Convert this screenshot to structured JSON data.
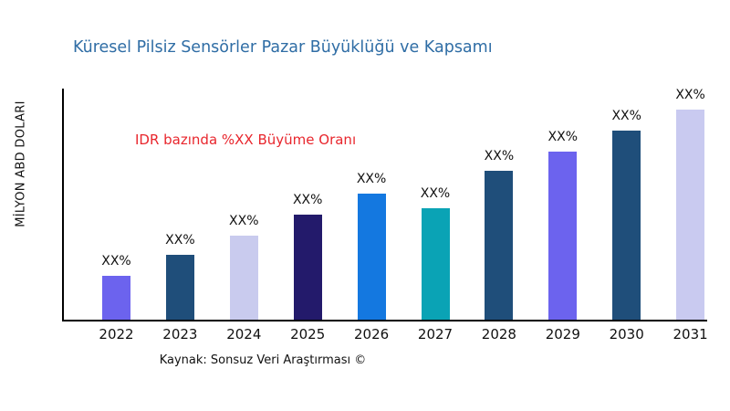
{
  "title": "Küresel Pilsiz Sensörler Pazar Büyüklüğü ve Kapsamı",
  "annotation": "IDR bazında %XX Büyüme Oranı",
  "source": "Kaynak: Sonsuz Veri Araştırması ©",
  "colors": {
    "title": "#2f6da5",
    "annotation": "#e8262d",
    "axis": "#000000",
    "label_text": "#111111"
  },
  "chart_data": {
    "type": "bar",
    "title": "Küresel Pilsiz Sensörler Pazar Büyüklüğü ve Kapsamı",
    "xlabel": "",
    "ylabel": "MİLYON ABD DOLARI",
    "categories": [
      "2022",
      "2023",
      "2024",
      "2025",
      "2026",
      "2027",
      "2028",
      "2029",
      "2030",
      "2031"
    ],
    "values": [
      21,
      31,
      40,
      50,
      60,
      53,
      71,
      80,
      90,
      100
    ],
    "value_unit": "relative height, % of tallest bar (actual values masked as XX% on chart)",
    "data_labels": [
      "XX%",
      "XX%",
      "XX%",
      "XX%",
      "XX%",
      "XX%",
      "XX%",
      "XX%",
      "XX%",
      "XX%"
    ],
    "bar_colors": [
      "#6c63ee",
      "#1f4e7a",
      "#c9cbee",
      "#231a6b",
      "#1478e0",
      "#0aa3b5",
      "#1f4e7a",
      "#6c63ee",
      "#1f4e7a",
      "#c9caf0"
    ],
    "annotation": "IDR bazında %XX Büyüme Oranı",
    "legend": "none",
    "grid": false,
    "ylim": [
      0,
      110
    ],
    "y_ticks_visible": false
  }
}
